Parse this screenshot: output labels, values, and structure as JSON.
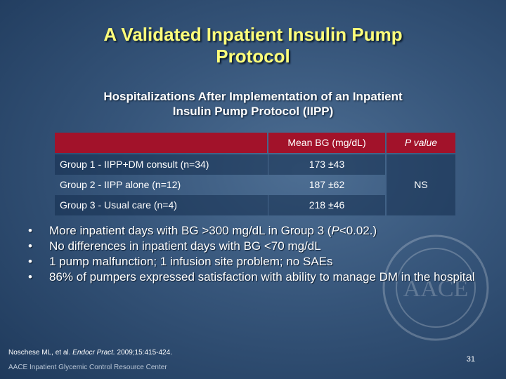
{
  "slide": {
    "title_line1": "A Validated Inpatient Insulin Pump",
    "title_line2": "Protocol",
    "subtitle_line1": "Hospitalizations After Implementation of an Inpatient",
    "subtitle_line2": "Insulin Pump Protocol (IIPP)"
  },
  "table": {
    "headers": [
      "",
      "Mean BG (mg/dL)",
      "P value"
    ],
    "rows": [
      {
        "label": "Group 1 - IIPP+DM consult (n=34)",
        "mean": "173 ±43"
      },
      {
        "label": "Group 2 - IIPP alone (n=12)",
        "mean": "187 ±62"
      },
      {
        "label": "Group 3 - Usual care (n=4)",
        "mean": "218 ±46"
      }
    ],
    "p_value": "NS"
  },
  "bullets": [
    {
      "pre": "More inpatient days with BG >300 mg/dL in Group 3 (",
      "em": "P",
      "post": "<0.02.)"
    },
    {
      "pre": "No differences in inpatient days with BG <70 mg/dL",
      "em": "",
      "post": ""
    },
    {
      "pre": "1 pump malfunction; 1 infusion site problem; no SAEs",
      "em": "",
      "post": ""
    },
    {
      "pre": "86% of pumpers expressed satisfaction with ability to manage DM in the hospital",
      "em": "",
      "post": ""
    }
  ],
  "citation": {
    "pre": "Noschese ML, et al. ",
    "journal": "Endocr Pract.",
    "post": " 2009;15:415-424."
  },
  "footer": "AACE Inpatient Glycemic Control Resource Center",
  "page_number": "31",
  "logo_text": "AACE",
  "colors": {
    "title": "#ffff7a",
    "header_bg": "#a2122a",
    "background": "#36557a"
  }
}
